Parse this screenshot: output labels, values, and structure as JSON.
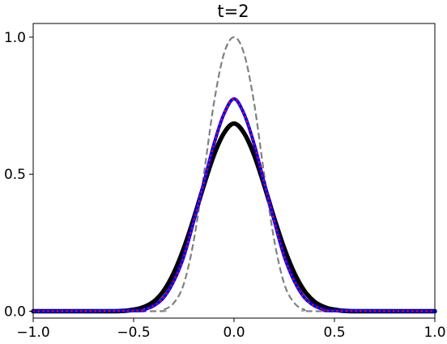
{
  "chart_data": {
    "type": "line",
    "title": "t=2",
    "xlabel": "",
    "ylabel": "",
    "xlim": [
      -1.0,
      1.0
    ],
    "ylim": [
      -0.025,
      1.05
    ],
    "x_ticks": [
      -1.0,
      -0.5,
      0.0,
      0.5,
      1.0
    ],
    "x_tick_labels": [
      "−1.0",
      "−0.5",
      "0.0",
      "0.5",
      "1.0"
    ],
    "y_ticks": [
      0.0,
      0.5,
      1.0
    ],
    "y_tick_labels": [
      "0.0",
      "0.5",
      "1.0"
    ],
    "grid": false,
    "legend": "none",
    "series": [
      {
        "color": "#000000",
        "style": "solid",
        "x": [
          -1.0,
          -0.6,
          -0.5,
          -0.45,
          -0.4,
          -0.35,
          -0.3,
          -0.25,
          -0.2,
          -0.15,
          -0.1,
          -0.05,
          0.0,
          0.05,
          0.1,
          0.15,
          0.2,
          0.25,
          0.3,
          0.35,
          0.4,
          0.45,
          0.5,
          0.6,
          1.0
        ],
        "y": [
          0.0,
          0.0,
          0.006,
          0.015,
          0.035,
          0.075,
          0.14,
          0.23,
          0.34,
          0.46,
          0.57,
          0.65,
          0.685,
          0.65,
          0.57,
          0.46,
          0.34,
          0.23,
          0.14,
          0.075,
          0.035,
          0.015,
          0.006,
          0.0,
          0.0
        ]
      },
      {
        "color": "#0000ff",
        "style": "solid",
        "x": [
          -1.0,
          -0.5,
          -0.45,
          -0.4,
          -0.35,
          -0.3,
          -0.25,
          -0.2,
          -0.15,
          -0.1,
          -0.05,
          0.0,
          0.05,
          0.1,
          0.15,
          0.2,
          0.25,
          0.3,
          0.35,
          0.4,
          0.45,
          0.5,
          1.0
        ],
        "y": [
          0.0,
          0.002,
          0.006,
          0.02,
          0.05,
          0.11,
          0.2,
          0.33,
          0.47,
          0.61,
          0.72,
          0.775,
          0.72,
          0.61,
          0.47,
          0.33,
          0.2,
          0.11,
          0.05,
          0.02,
          0.006,
          0.002,
          0.0
        ]
      },
      {
        "color": "#ff0000",
        "style": "dotted",
        "x": [
          -1.0,
          -0.5,
          -0.45,
          -0.4,
          -0.35,
          -0.3,
          -0.25,
          -0.2,
          -0.15,
          -0.1,
          -0.05,
          0.0,
          0.05,
          0.1,
          0.15,
          0.2,
          0.25,
          0.3,
          0.35,
          0.4,
          0.45,
          0.5,
          1.0
        ],
        "y": [
          0.0,
          0.002,
          0.006,
          0.02,
          0.05,
          0.11,
          0.2,
          0.33,
          0.47,
          0.61,
          0.72,
          0.775,
          0.72,
          0.61,
          0.47,
          0.33,
          0.2,
          0.11,
          0.05,
          0.02,
          0.006,
          0.002,
          0.0
        ]
      },
      {
        "color": "#808080",
        "style": "dashed",
        "x": [
          -1.0,
          -0.4,
          -0.35,
          -0.3,
          -0.25,
          -0.2,
          -0.15,
          -0.1,
          -0.05,
          0.0,
          0.05,
          0.1,
          0.15,
          0.2,
          0.25,
          0.3,
          0.35,
          0.4,
          1.0
        ],
        "y": [
          0.0,
          0.0,
          0.006,
          0.03,
          0.1,
          0.26,
          0.5,
          0.76,
          0.94,
          1.0,
          0.94,
          0.76,
          0.5,
          0.26,
          0.1,
          0.03,
          0.006,
          0.0,
          0.0
        ]
      }
    ]
  }
}
